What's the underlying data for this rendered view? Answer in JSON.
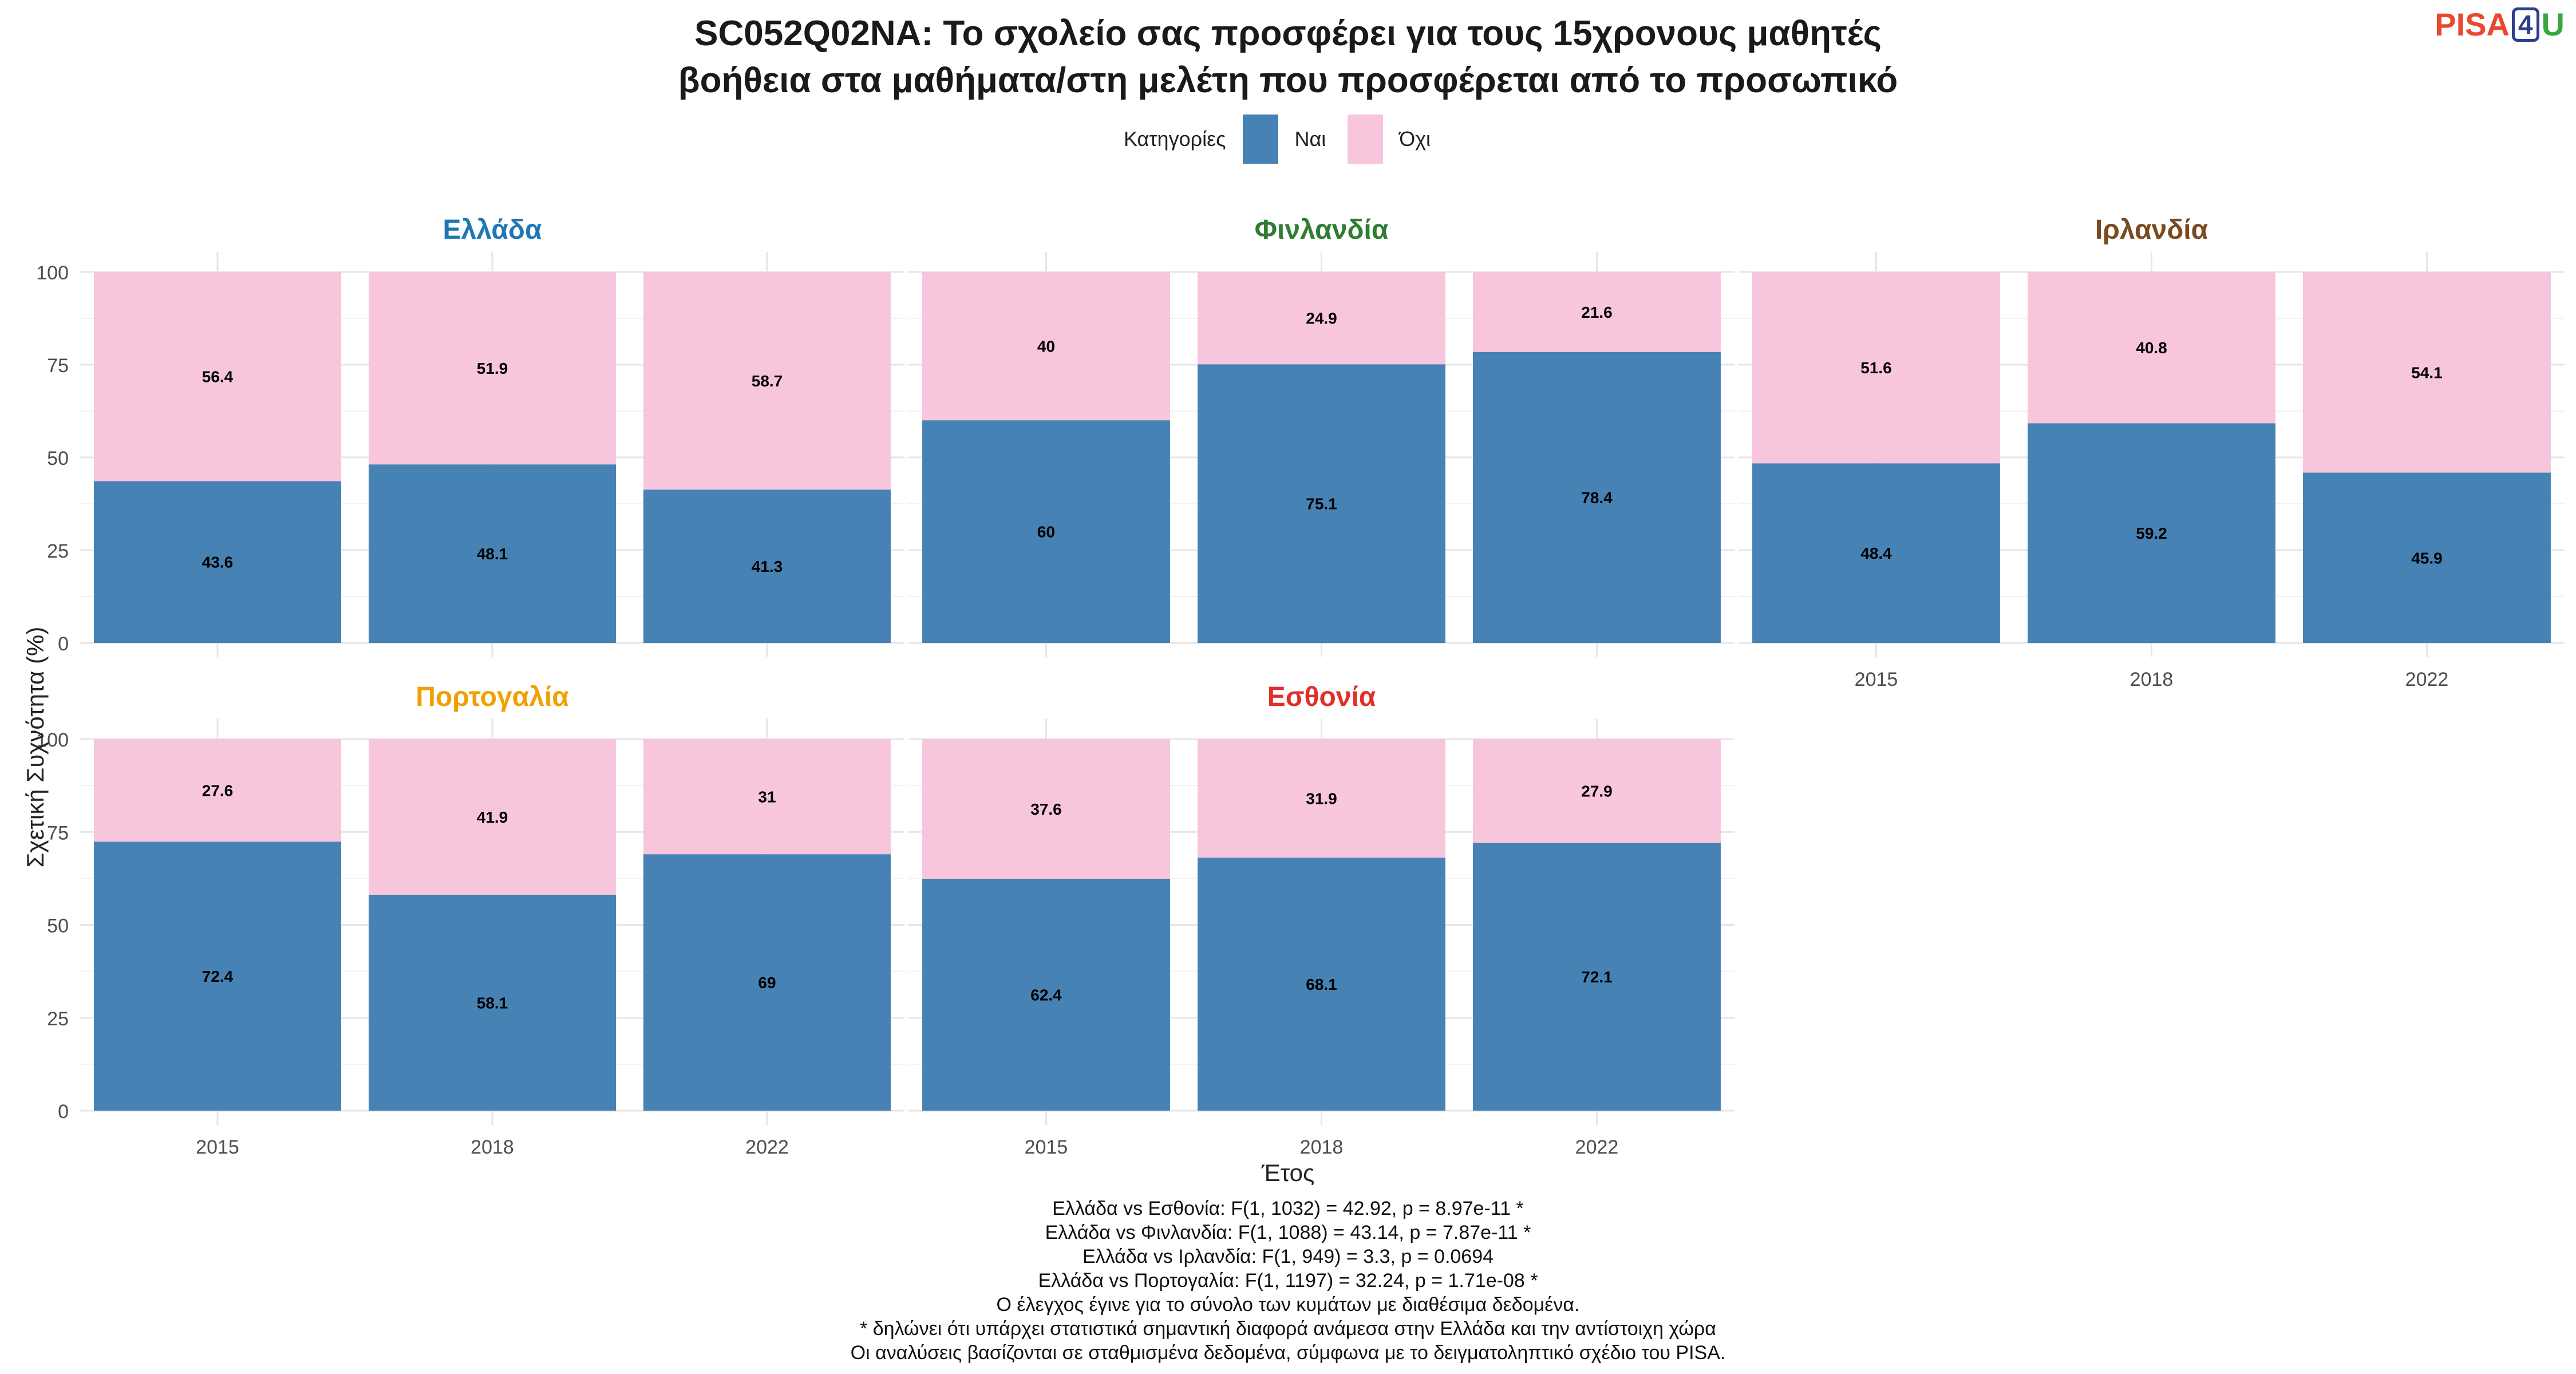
{
  "title_line1": "SC052Q02NA: Το σχολείο σας προσφέρει για τους 15χρονους μαθητές",
  "title_line2": "βοήθεια στα μαθήματα/στη μελέτη που προσφέρεται από το προσωπικό",
  "logo": {
    "pisa": "PISA",
    "four": "4",
    "u": "U"
  },
  "legend": {
    "title": "Κατηγορίες",
    "items": [
      "Ναι",
      "Όχι"
    ]
  },
  "colors": {
    "yes": "#4682b4",
    "no": "#f7c6dc",
    "grid": "#e6e6e6",
    "Ελλάδα": "#1f77b4",
    "Φινλανδία": "#2e7d32",
    "Ιρλανδία": "#7b4a1e",
    "Πορτογαλία": "#f0a000",
    "Εσθονία": "#e0302a"
  },
  "chart_data": {
    "type": "bar",
    "stacked": true,
    "categories": [
      "2015",
      "2018",
      "2022"
    ],
    "xlabel": "Έτος",
    "ylabel": "Σχετική Συχνότητα (%)",
    "ylim": [
      0,
      100
    ],
    "yticks": [
      0,
      25,
      50,
      75,
      100
    ],
    "grid": true,
    "legend_position": "top",
    "panels": [
      {
        "name": "Ελλάδα",
        "series": [
          {
            "name": "Ναι",
            "values": [
              43.6,
              48.1,
              41.3
            ]
          },
          {
            "name": "Όχι",
            "values": [
              56.4,
              51.9,
              58.7
            ]
          }
        ]
      },
      {
        "name": "Φινλανδία",
        "series": [
          {
            "name": "Ναι",
            "values": [
              60,
              75.1,
              78.4
            ]
          },
          {
            "name": "Όχι",
            "values": [
              40,
              24.9,
              21.6
            ]
          }
        ]
      },
      {
        "name": "Ιρλανδία",
        "series": [
          {
            "name": "Ναι",
            "values": [
              48.4,
              59.2,
              45.9
            ]
          },
          {
            "name": "Όχι",
            "values": [
              51.6,
              40.8,
              54.1
            ]
          }
        ]
      },
      {
        "name": "Πορτογαλία",
        "series": [
          {
            "name": "Ναι",
            "values": [
              72.4,
              58.1,
              69
            ]
          },
          {
            "name": "Όχι",
            "values": [
              27.6,
              41.9,
              31
            ]
          }
        ]
      },
      {
        "name": "Εσθονία",
        "series": [
          {
            "name": "Ναι",
            "values": [
              62.4,
              68.1,
              72.1
            ]
          },
          {
            "name": "Όχι",
            "values": [
              37.6,
              31.9,
              27.9
            ]
          }
        ]
      }
    ]
  },
  "notes": [
    "Ελλάδα vs Εσθονία: F(1, 1032) = 42.92, p = 8.97e-11 *",
    "Ελλάδα vs Φινλανδία: F(1, 1088) = 43.14, p = 7.87e-11 *",
    "Ελλάδα vs Ιρλανδία: F(1, 949) = 3.3, p = 0.0694",
    "Ελλάδα vs Πορτογαλία: F(1, 1197) = 32.24, p = 1.71e-08 *",
    "Ο έλεγχος έγινε για το σύνολο των κυμάτων με διαθέσιμα δεδομένα.",
    "* δηλώνει ότι υπάρχει στατιστικά σημαντική διαφορά ανάμεσα στην Ελλάδα και την αντίστοιχη χώρα",
    "Οι αναλύσεις βασίζονται σε σταθμισμένα δεδομένα, σύμφωνα με το δειγματοληπτικό σχέδιο του PISA."
  ]
}
